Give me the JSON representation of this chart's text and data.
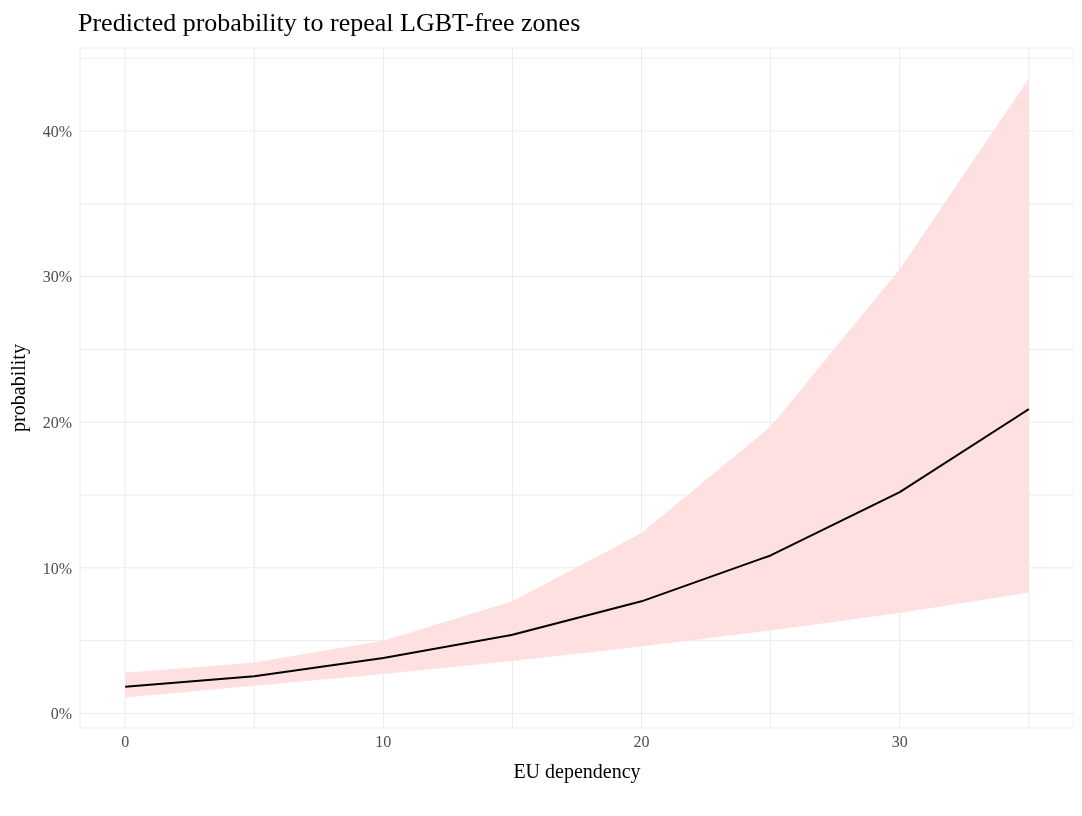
{
  "chart_data": {
    "type": "line",
    "title": "Predicted probability to repeal LGBT-free zones",
    "xlabel": "EU dependency",
    "ylabel": "probability",
    "x": [
      0,
      5,
      10,
      15,
      20,
      25,
      30,
      35
    ],
    "series": [
      {
        "color": "#000000",
        "values": [
          1.83,
          2.55,
          3.8,
          5.4,
          7.7,
          10.85,
          15.2,
          20.9
        ],
        "lower": [
          1.1,
          1.9,
          2.7,
          3.6,
          4.6,
          5.7,
          6.9,
          8.3
        ],
        "upper": [
          2.8,
          3.5,
          5.0,
          7.7,
          12.4,
          19.7,
          30.5,
          43.6
        ]
      }
    ],
    "xlim": [
      -1.75,
      36.75
    ],
    "xticks": [
      0,
      {
        "value": 5,
        "label": null
      },
      10,
      {
        "value": 15,
        "label": null
      },
      20,
      {
        "value": 25,
        "label": null
      },
      30,
      {
        "value": 35,
        "label": null
      }
    ],
    "ylim": [
      -1.0,
      45.7
    ],
    "yticks": [
      {
        "value": 0,
        "label": "0%"
      },
      {
        "value": 5,
        "label": null
      },
      {
        "value": 10,
        "label": "10%"
      },
      {
        "value": 15,
        "label": null
      },
      {
        "value": 20,
        "label": "20%"
      },
      {
        "value": 25,
        "label": null
      },
      {
        "value": 30,
        "label": "30%"
      },
      {
        "value": 35,
        "label": null
      },
      {
        "value": 40,
        "label": "40%"
      },
      {
        "value": 45,
        "label": null
      }
    ],
    "grid": true,
    "legend": false,
    "marker": "none",
    "line_style": "solid"
  }
}
